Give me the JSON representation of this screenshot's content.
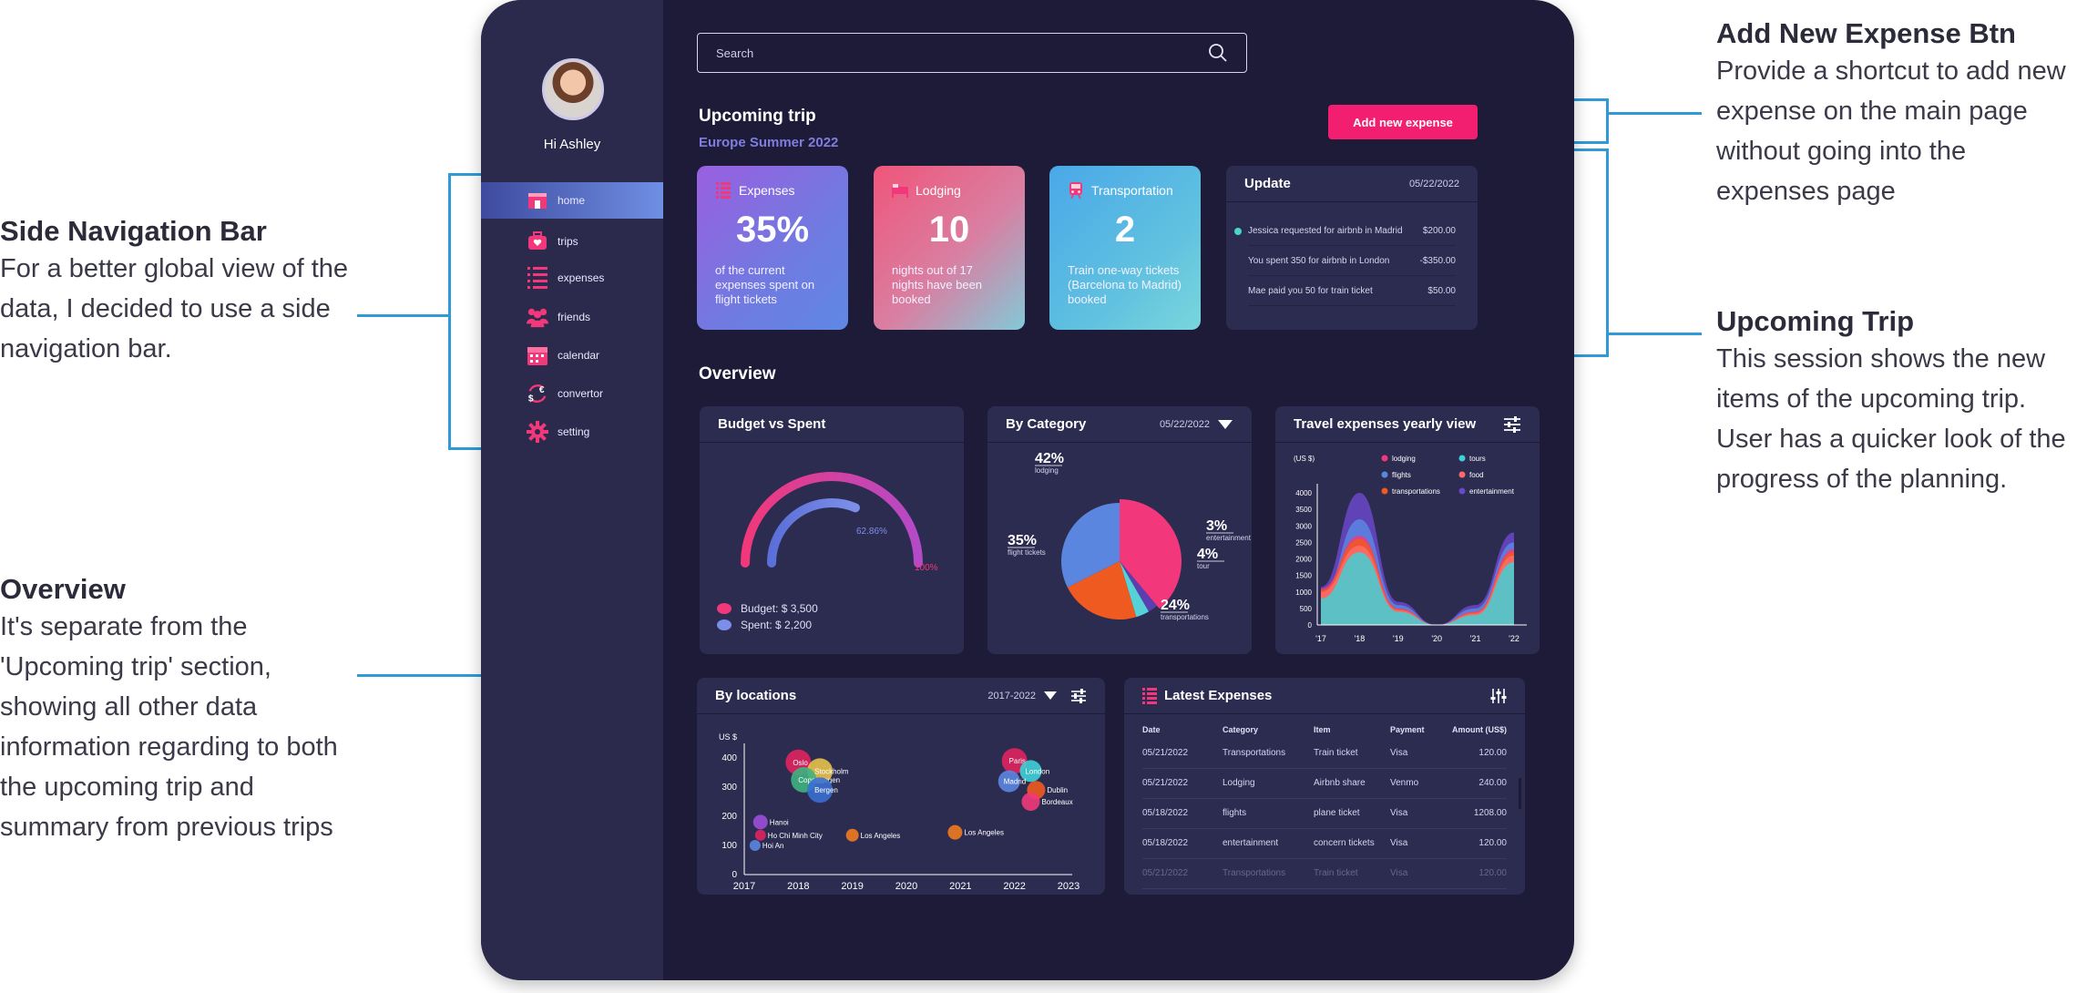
{
  "annotations": {
    "side_nav": {
      "title": "Side Navigation Bar",
      "lines": [
        "For a better global view of the",
        "data, I decided to use a side",
        "navigation bar."
      ]
    },
    "overview": {
      "title": "Overview",
      "lines": [
        "It's separate from the",
        "'Upcoming trip' section,",
        "showing all other data",
        "information regarding to both",
        "the upcoming trip and",
        "summary from previous trips"
      ]
    },
    "add_btn": {
      "title": "Add New Expense Btn",
      "lines": [
        "Provide a shortcut to add new",
        "expense on the main page",
        "without going into the",
        "expenses page"
      ]
    },
    "upcoming": {
      "title": "Upcoming Trip",
      "lines": [
        "This session shows the new",
        "items of the upcoming trip.",
        "User has a quicker look of the",
        "progress of the planning."
      ]
    }
  },
  "sidebar": {
    "greeting": "Hi Ashley",
    "items": [
      {
        "label": "home",
        "icon": "home-icon"
      },
      {
        "label": "trips",
        "icon": "suitcase-icon"
      },
      {
        "label": "expenses",
        "icon": "list-icon"
      },
      {
        "label": "friends",
        "icon": "people-icon"
      },
      {
        "label": "calendar",
        "icon": "calendar-icon"
      },
      {
        "label": "convertor",
        "icon": "currency-icon"
      },
      {
        "label": "setting",
        "icon": "gear-icon"
      }
    ]
  },
  "search": {
    "placeholder": "Search"
  },
  "upcoming": {
    "title": "Upcoming trip",
    "subtitle": "Europe Summer 2022",
    "add_button": "Add new expense",
    "stats": [
      {
        "label": "Expenses",
        "value": "35%",
        "desc": "of the current expenses spent on flight tickets"
      },
      {
        "label": "Lodging",
        "value": "10",
        "desc": "nights out of 17 nights have been booked"
      },
      {
        "label": "Transportation",
        "value": "2",
        "desc": "Train one-way tickets (Barcelona to Madrid) booked"
      }
    ],
    "update": {
      "title": "Update",
      "date": "05/22/2022",
      "rows": [
        {
          "text": "Jessica requested for airbnb in Madrid",
          "amount": "$200.00"
        },
        {
          "text": "You spent 350 for airbnb in London",
          "amount": "-$350.00"
        },
        {
          "text": "Mae paid you 50 for train ticket",
          "amount": "$50.00"
        }
      ]
    }
  },
  "overview": {
    "title": "Overview",
    "budget": {
      "title": "Budget vs Spent",
      "pct_spent": "62.86%",
      "pct_budget": "100%",
      "budget_label": "Budget: $ 3,500",
      "spent_label": "Spent: $ 2,200",
      "spent_fraction": 0.6286
    },
    "category": {
      "title": "By Category",
      "date": "05/22/2022"
    },
    "yearly": {
      "title": "Travel expenses yearly view"
    },
    "locations": {
      "title": "By locations",
      "range": "2017-2022"
    },
    "latest": {
      "title": "Latest Expenses",
      "columns": [
        "Date",
        "Category",
        "Item",
        "Payment",
        "Amount (US$)"
      ],
      "rows": [
        [
          "05/21/2022",
          "Transportations",
          "Train ticket",
          "Visa",
          "120.00"
        ],
        [
          "05/21/2022",
          "Lodging",
          "Airbnb share",
          "Venmo",
          "240.00"
        ],
        [
          "05/18/2022",
          "flights",
          "plane ticket",
          "Visa",
          "1208.00"
        ],
        [
          "05/18/2022",
          "entertainment",
          "concern tickets",
          "Visa",
          "120.00"
        ],
        [
          "05/21/2022",
          "Transportations",
          "Train ticket",
          "Visa",
          "120.00"
        ]
      ]
    }
  },
  "colors": {
    "bg": "#1d1b38",
    "sidebar": "#2b2a4c",
    "accent": "#f21e6f",
    "card": "#2c2b50",
    "leader": "#2f9ad6"
  },
  "chart_data": [
    {
      "type": "pie",
      "title": "By Category",
      "categories": [
        "lodging",
        "entertainment",
        "tour",
        "transportations",
        "flight tickets"
      ],
      "values": [
        42,
        3,
        4,
        24,
        35
      ],
      "value_labels": [
        "42%",
        "3%",
        "4%",
        "24%",
        "35%"
      ],
      "colors": [
        "#f2387a",
        "#5b3fb0",
        "#55d2d8",
        "#ef5a20",
        "#5b86e0"
      ]
    },
    {
      "type": "area",
      "title": "Travel expenses yearly view",
      "ylabel": "(US $)",
      "x": [
        "'17",
        "'18",
        "'19",
        "'20",
        "'21",
        "'22"
      ],
      "ylim": [
        0,
        4000
      ],
      "yticks": [
        "4000",
        "3500",
        "3000",
        "2500",
        "2000",
        "1500",
        "1000",
        "500",
        "0"
      ],
      "legend": "top",
      "series": [
        {
          "name": "lodging",
          "color": "#f2387a",
          "values": [
            1100,
            2700,
            500,
            0,
            400,
            2300
          ]
        },
        {
          "name": "tours",
          "color": "#3fd0d6",
          "values": [
            800,
            2200,
            400,
            0,
            300,
            1900
          ]
        },
        {
          "name": "flights",
          "color": "#5b86e0",
          "values": [
            900,
            3200,
            600,
            0,
            500,
            2500
          ]
        },
        {
          "name": "food",
          "color": "#ff6b6b",
          "values": [
            1000,
            2400,
            450,
            0,
            350,
            2100
          ]
        },
        {
          "name": "transportations",
          "color": "#ef5a20",
          "values": [
            1050,
            2600,
            480,
            0,
            380,
            2200
          ]
        },
        {
          "name": "entertainment",
          "color": "#6a48c8",
          "values": [
            1150,
            4000,
            700,
            0,
            600,
            2800
          ]
        }
      ]
    },
    {
      "type": "scatter",
      "title": "By locations",
      "ylabel": "US $",
      "x_ticks": [
        "2017",
        "2018",
        "2019",
        "2020",
        "2021",
        "2022",
        "2023"
      ],
      "y_ticks": [
        "400",
        "300",
        "200",
        "100",
        "0"
      ],
      "xlim": [
        2017,
        2023
      ],
      "ylim": [
        0,
        400
      ],
      "points": [
        {
          "label": "Oslo",
          "x": 2018.0,
          "y": 385,
          "color": "#e0245e",
          "r": 14
        },
        {
          "label": "Stockholm",
          "x": 2018.4,
          "y": 355,
          "color": "#e8c24a",
          "r": 14
        },
        {
          "label": "Copenhagen",
          "x": 2018.1,
          "y": 325,
          "color": "#3fb37f",
          "r": 14
        },
        {
          "label": "Bergen",
          "x": 2018.4,
          "y": 290,
          "color": "#3a6fd0",
          "r": 14
        },
        {
          "label": "Hanoi",
          "x": 2017.3,
          "y": 180,
          "color": "#9b4fd8",
          "r": 8
        },
        {
          "label": "Ho Chi Minh City",
          "x": 2017.3,
          "y": 135,
          "color": "#e0245e",
          "r": 6
        },
        {
          "label": "Hoi An",
          "x": 2017.2,
          "y": 100,
          "color": "#5b86e0",
          "r": 6
        },
        {
          "label": "Los Angeles",
          "x": 2019.0,
          "y": 135,
          "color": "#ef7a20",
          "r": 7
        },
        {
          "label": "Los Angeles",
          "x": 2020.9,
          "y": 145,
          "color": "#ef7a20",
          "r": 8
        },
        {
          "label": "Paris",
          "x": 2022.0,
          "y": 390,
          "color": "#e0245e",
          "r": 14
        },
        {
          "label": "London",
          "x": 2022.3,
          "y": 355,
          "color": "#3fd0d6",
          "r": 12
        },
        {
          "label": "Madrid",
          "x": 2021.9,
          "y": 320,
          "color": "#5b86e0",
          "r": 12
        },
        {
          "label": "Dublin",
          "x": 2022.4,
          "y": 290,
          "color": "#ef5a20",
          "r": 10
        },
        {
          "label": "Bordeaux",
          "x": 2022.3,
          "y": 250,
          "color": "#f2387a",
          "r": 10
        }
      ]
    },
    {
      "type": "bar",
      "title": "Budget vs Spent",
      "categories": [
        "Budget",
        "Spent"
      ],
      "values": [
        3500,
        2200
      ]
    }
  ]
}
